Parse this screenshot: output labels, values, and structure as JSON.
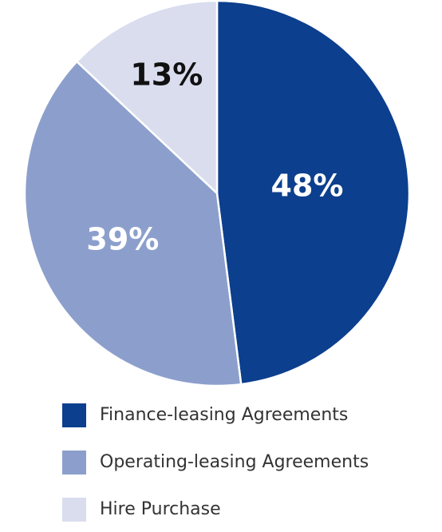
{
  "chart_data": {
    "type": "pie",
    "categories": [
      "Finance-leasing Agreements",
      "Operating-leasing Agreements",
      "Hire Purchase"
    ],
    "values": [
      48,
      39,
      13
    ],
    "value_labels": [
      "48%",
      "39%",
      "13%"
    ],
    "colors": [
      "#0c3f8d",
      "#8c9fcc",
      "#d9ddee"
    ],
    "label_colors": [
      "#ffffff",
      "#ffffff",
      "#111111"
    ],
    "legend": "bottom"
  }
}
